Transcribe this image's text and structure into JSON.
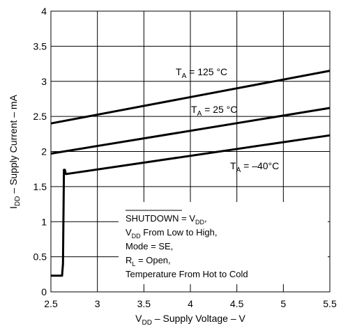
{
  "chart_data": {
    "type": "line",
    "xlabel": {
      "main": "V",
      "sub": "DD",
      "rest": " – Supply Voltage – V"
    },
    "ylabel": {
      "main": "I",
      "sub": "DD",
      "rest": " – Supply Current  – mA"
    },
    "xlim": [
      2.5,
      5.5
    ],
    "ylim": [
      0,
      4
    ],
    "x_ticks": [
      2.5,
      3,
      3.5,
      4,
      4.5,
      5,
      5.5
    ],
    "y_ticks": [
      0,
      0.5,
      1,
      1.5,
      2,
      2.5,
      3,
      3.5,
      4
    ],
    "grid": true,
    "series": [
      {
        "name": "T_A = 125 °C",
        "x": [
          2.5,
          5.5
        ],
        "y": [
          2.4,
          3.15
        ]
      },
      {
        "name": "T_A = 25 °C",
        "x": [
          2.5,
          5.5
        ],
        "y": [
          1.97,
          2.62
        ]
      },
      {
        "name": "T_A = –40°C",
        "x": [
          2.5,
          2.55,
          2.62,
          2.63,
          2.64,
          2.65,
          2.66,
          2.67,
          5.5
        ],
        "y": [
          0.23,
          0.23,
          0.23,
          0.4,
          1.74,
          1.74,
          1.68,
          1.68,
          2.23
        ]
      }
    ],
    "series_labels": [
      {
        "main": "T",
        "sub": "A",
        "rest": " = 125 °C"
      },
      {
        "main": "T",
        "sub": "A",
        "rest": " = 25 °C"
      },
      {
        "main": "T",
        "sub": "A",
        "rest": " = –40°C"
      }
    ],
    "annotation": [
      {
        "main": "SHUTDOWN",
        "rest": " = V",
        "sub": "DD",
        "after": ",",
        "overline": true
      },
      {
        "main": "V",
        "sub": "DD",
        "rest": " From Low to  High,",
        "overline": false
      },
      {
        "main": "Mode = SE,",
        "overline": false
      },
      {
        "main": "R",
        "sub": "L",
        "rest": " = Open,",
        "overline": false
      },
      {
        "main": "Temperature  From Hot to Cold",
        "overline": false
      }
    ]
  }
}
